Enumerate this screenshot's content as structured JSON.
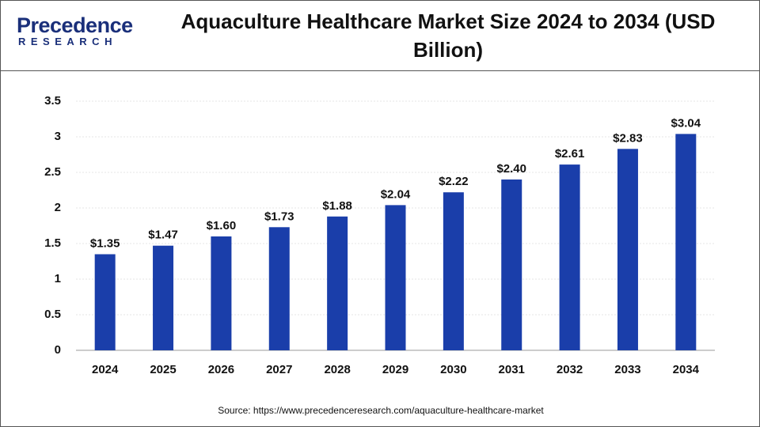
{
  "logo": {
    "name": "Precedence",
    "tagline": "RESEARCH"
  },
  "chart_data": {
    "type": "bar",
    "title": "Aquaculture Healthcare Market Size 2024 to 2034 (USD Billion)",
    "categories": [
      "2024",
      "2025",
      "2026",
      "2027",
      "2028",
      "2029",
      "2030",
      "2031",
      "2032",
      "2033",
      "2034"
    ],
    "values": [
      1.35,
      1.47,
      1.6,
      1.73,
      1.88,
      2.04,
      2.22,
      2.4,
      2.61,
      2.83,
      3.04
    ],
    "value_labels": [
      "$1.35",
      "$1.47",
      "$1.60",
      "$1.73",
      "$1.88",
      "$2.04",
      "$2.22",
      "$2.40",
      "$2.61",
      "$2.83",
      "$3.04"
    ],
    "color": "#1a3eaa",
    "ylim": [
      0,
      3.5
    ],
    "yticks": [
      0,
      0.5,
      1,
      1.5,
      2,
      2.5,
      3,
      3.5
    ],
    "grid": true,
    "source": "Source: https://www.precedenceresearch.com/aquaculture-healthcare-market"
  }
}
